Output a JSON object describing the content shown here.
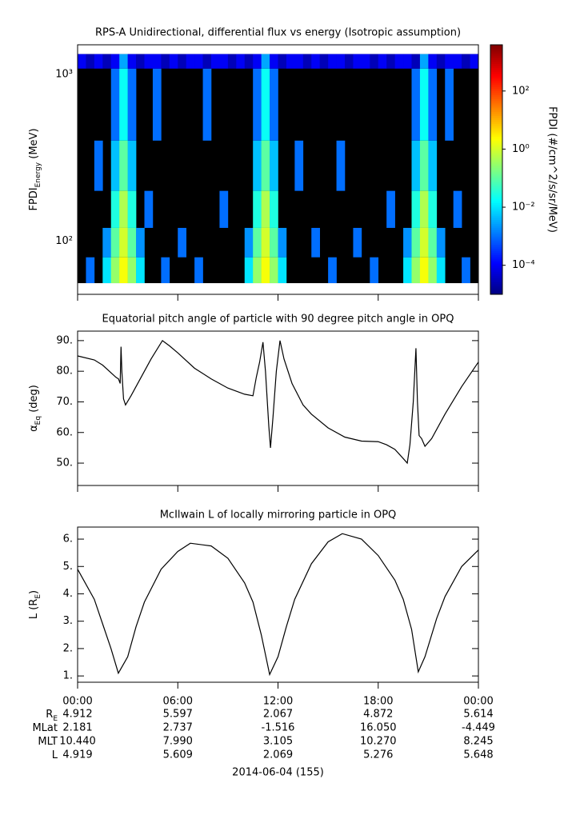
{
  "chart_data": [
    {
      "type": "heatmap",
      "title": "RPS-A Unidirectional, differential flux vs energy (Isotropic assumption)",
      "ylabel": [
        "FPDI",
        "Energy",
        " (MeV)"
      ],
      "x_bins": [
        0,
        0.5,
        1,
        1.5,
        2,
        2.5,
        3,
        3.5,
        4,
        4.5,
        5,
        5.5,
        6,
        6.5,
        7,
        7.5,
        8,
        8.5,
        9,
        9.5,
        10,
        10.5,
        11,
        11.5,
        12,
        12.5,
        13,
        13.5,
        14,
        14.5,
        15,
        15.5,
        16,
        16.5,
        17,
        17.5,
        18,
        18.5,
        19,
        19.5,
        20,
        20.5,
        21,
        21.5,
        22,
        22.5,
        23,
        23.5,
        24
      ],
      "y_bins": [
        56,
        80,
        120,
        200,
        400,
        1080,
        1320
      ],
      "z": [
        [
          null,
          0.001,
          null,
          0.01,
          0.3,
          2,
          0.3,
          0.01,
          null,
          null,
          0.001,
          null,
          null,
          null,
          0.001,
          null,
          null,
          null,
          null,
          null,
          0.01,
          0.3,
          2,
          0.3,
          0.01,
          null,
          null,
          null,
          null,
          null,
          0.001,
          null,
          null,
          null,
          null,
          0.001,
          null,
          null,
          null,
          0.01,
          0.3,
          2,
          0.3,
          0.01,
          null,
          null,
          0.001,
          null
        ],
        [
          null,
          null,
          null,
          0.002,
          0.1,
          1,
          0.1,
          0.002,
          null,
          null,
          null,
          null,
          0.001,
          null,
          null,
          null,
          null,
          null,
          null,
          null,
          0.002,
          0.1,
          1,
          0.1,
          0.002,
          null,
          null,
          null,
          0.001,
          null,
          null,
          null,
          null,
          0.001,
          null,
          null,
          null,
          null,
          null,
          0.002,
          0.1,
          1,
          0.1,
          0.002,
          null,
          null,
          null,
          null
        ],
        [
          null,
          null,
          null,
          null,
          0.03,
          0.5,
          0.03,
          null,
          0.001,
          null,
          null,
          null,
          null,
          null,
          null,
          null,
          null,
          0.001,
          null,
          null,
          null,
          0.03,
          0.5,
          0.03,
          null,
          null,
          null,
          null,
          null,
          null,
          null,
          null,
          null,
          null,
          null,
          null,
          null,
          0.001,
          null,
          null,
          0.03,
          0.5,
          0.03,
          null,
          null,
          0.001,
          null,
          null
        ],
        [
          null,
          null,
          0.001,
          null,
          0.005,
          0.1,
          0.005,
          null,
          null,
          null,
          null,
          null,
          null,
          null,
          null,
          null,
          null,
          null,
          null,
          null,
          null,
          0.005,
          0.1,
          0.005,
          null,
          null,
          0.001,
          null,
          null,
          null,
          null,
          0.001,
          null,
          null,
          null,
          null,
          null,
          null,
          null,
          null,
          0.005,
          0.1,
          0.005,
          null,
          null,
          null,
          null,
          null
        ],
        [
          null,
          null,
          null,
          null,
          0.001,
          0.02,
          0.001,
          null,
          null,
          0.001,
          null,
          null,
          null,
          null,
          null,
          0.001,
          null,
          null,
          null,
          null,
          null,
          0.001,
          0.02,
          0.001,
          null,
          null,
          null,
          null,
          null,
          null,
          null,
          null,
          null,
          null,
          null,
          null,
          null,
          null,
          null,
          null,
          0.001,
          0.02,
          0.001,
          null,
          0.001,
          null,
          null,
          null
        ],
        [
          0.0001,
          3e-05,
          0.0001,
          3e-05,
          0.0001,
          0.003,
          0.0001,
          3e-05,
          0.0001,
          0.0001,
          3e-05,
          0.0001,
          3e-05,
          0.0001,
          0.0001,
          3e-05,
          0.0001,
          0.0001,
          3e-05,
          0.0001,
          3e-05,
          0.0001,
          0.003,
          0.0001,
          3e-05,
          0.0001,
          0.0001,
          3e-05,
          0.0001,
          3e-05,
          0.0001,
          0.0001,
          3e-05,
          0.0001,
          0.0001,
          3e-05,
          0.0001,
          3e-05,
          0.0001,
          0.0001,
          3e-05,
          0.003,
          0.0001,
          3e-05,
          0.0001,
          0.0001,
          3e-05,
          0.0001
        ]
      ],
      "null_color": "#000000",
      "xlim": [
        0,
        24
      ],
      "xticks": [
        0,
        6,
        12,
        18,
        24
      ],
      "ylim": [
        48,
        1500
      ],
      "yscale": "log",
      "yticks": [
        {
          "value": 100,
          "label": "10²"
        },
        {
          "value": 1000,
          "label": "10³"
        }
      ],
      "colorbar": {
        "label": "FPDI (#/cm^2/s/sr/MeV)",
        "zlim": [
          1e-05,
          3900
        ],
        "scale": "log",
        "colormap": "jet",
        "ticks": [
          {
            "value": 100,
            "label": "10²"
          },
          {
            "value": 1,
            "label": "10⁰"
          },
          {
            "value": 0.01,
            "label": "10⁻²"
          },
          {
            "value": 0.0001,
            "label": "10⁻⁴"
          }
        ]
      }
    },
    {
      "type": "line",
      "title": "Equatorial pitch angle of particle with 90 degree pitch angle in OPQ",
      "ylabel": [
        "α",
        "Eq",
        " (deg)"
      ],
      "x": [
        0,
        1,
        1.5,
        2,
        2.3,
        2.45,
        2.55,
        2.6,
        2.65,
        2.75,
        2.87,
        3.2,
        3.8,
        4.4,
        5.08,
        5.5,
        6,
        7,
        8,
        9,
        10,
        10.5,
        10.7,
        10.9,
        11.1,
        11.25,
        11.45,
        11.55,
        11.7,
        11.9,
        12.12,
        12.36,
        12.84,
        13.5,
        14,
        15,
        16,
        17,
        18,
        18.5,
        19,
        19.5,
        19.74,
        19.9,
        20.1,
        20.26,
        20.35,
        20.45,
        20.6,
        20.8,
        21.2,
        22,
        23,
        24
      ],
      "values": [
        85,
        83.7,
        82,
        79.5,
        78,
        77.5,
        76,
        88,
        80,
        71,
        69,
        72,
        78,
        84,
        90,
        88.3,
        86,
        81,
        77.5,
        74.5,
        72.5,
        72,
        78,
        83,
        89.5,
        80,
        62,
        55,
        65,
        80,
        90,
        84,
        76,
        69,
        66,
        61.5,
        58.5,
        57.2,
        57,
        56,
        54.5,
        51.5,
        50,
        56,
        70,
        87.5,
        70,
        59,
        58,
        55.5,
        58,
        66,
        75,
        83
      ],
      "color": "#000000",
      "xlim": [
        0,
        24
      ],
      "xticks": [
        0,
        6,
        12,
        18,
        24
      ],
      "ylim": [
        42.7,
        93.1
      ],
      "yticks": [
        {
          "value": 50,
          "label": "50."
        },
        {
          "value": 60,
          "label": "60."
        },
        {
          "value": 70,
          "label": "70."
        },
        {
          "value": 80,
          "label": "80."
        },
        {
          "value": 90,
          "label": "90."
        }
      ]
    },
    {
      "type": "line",
      "title": "McIlwain L of locally mirroring particle in OPQ",
      "ylabel": [
        "L (R",
        "E",
        ")"
      ],
      "x": [
        0,
        1,
        1.5,
        2,
        2.44,
        3,
        3.5,
        4,
        5,
        6,
        6.75,
        8,
        9,
        10,
        10.5,
        11,
        11.5,
        12,
        12.5,
        13,
        14,
        15,
        15.85,
        17,
        18,
        19,
        19.5,
        20,
        20.4,
        20.8,
        21.5,
        22,
        23,
        24
      ],
      "values": [
        4.9,
        3.8,
        2.9,
        2.0,
        1.1,
        1.7,
        2.8,
        3.7,
        4.9,
        5.55,
        5.85,
        5.75,
        5.3,
        4.4,
        3.7,
        2.5,
        1.05,
        1.7,
        2.8,
        3.8,
        5.1,
        5.9,
        6.2,
        6.0,
        5.4,
        4.5,
        3.8,
        2.7,
        1.15,
        1.7,
        3.1,
        3.9,
        5.0,
        5.6
      ],
      "color": "#000000",
      "xlim": [
        0,
        24
      ],
      "xticks": [
        {
          "value": 0,
          "label": "00:00"
        },
        {
          "value": 6,
          "label": "06:00"
        },
        {
          "value": 12,
          "label": "12:00"
        },
        {
          "value": 18,
          "label": "18:00"
        },
        {
          "value": 24,
          "label": "00:00"
        }
      ],
      "ylim": [
        0.77,
        6.44
      ],
      "yticks": [
        {
          "value": 1,
          "label": "1."
        },
        {
          "value": 2,
          "label": "2."
        },
        {
          "value": 3,
          "label": "3."
        },
        {
          "value": 4,
          "label": "4."
        },
        {
          "value": 5,
          "label": "5."
        },
        {
          "value": 6,
          "label": "6."
        }
      ]
    }
  ],
  "ephemeris": {
    "row_labels": [
      [
        "R",
        "E"
      ],
      [
        "MLat"
      ],
      [
        "MLT"
      ],
      [
        "L"
      ]
    ],
    "rows": [
      [
        "4.912",
        "5.597",
        "2.067",
        "4.872",
        "5.614"
      ],
      [
        "2.181",
        "2.737",
        "-1.516",
        "16.050",
        "-4.449"
      ],
      [
        "10.440",
        "7.990",
        "3.105",
        "10.270",
        "8.245"
      ],
      [
        "4.919",
        "5.609",
        "2.069",
        "5.276",
        "5.648"
      ]
    ],
    "date": "2014-06-04 (155)"
  }
}
